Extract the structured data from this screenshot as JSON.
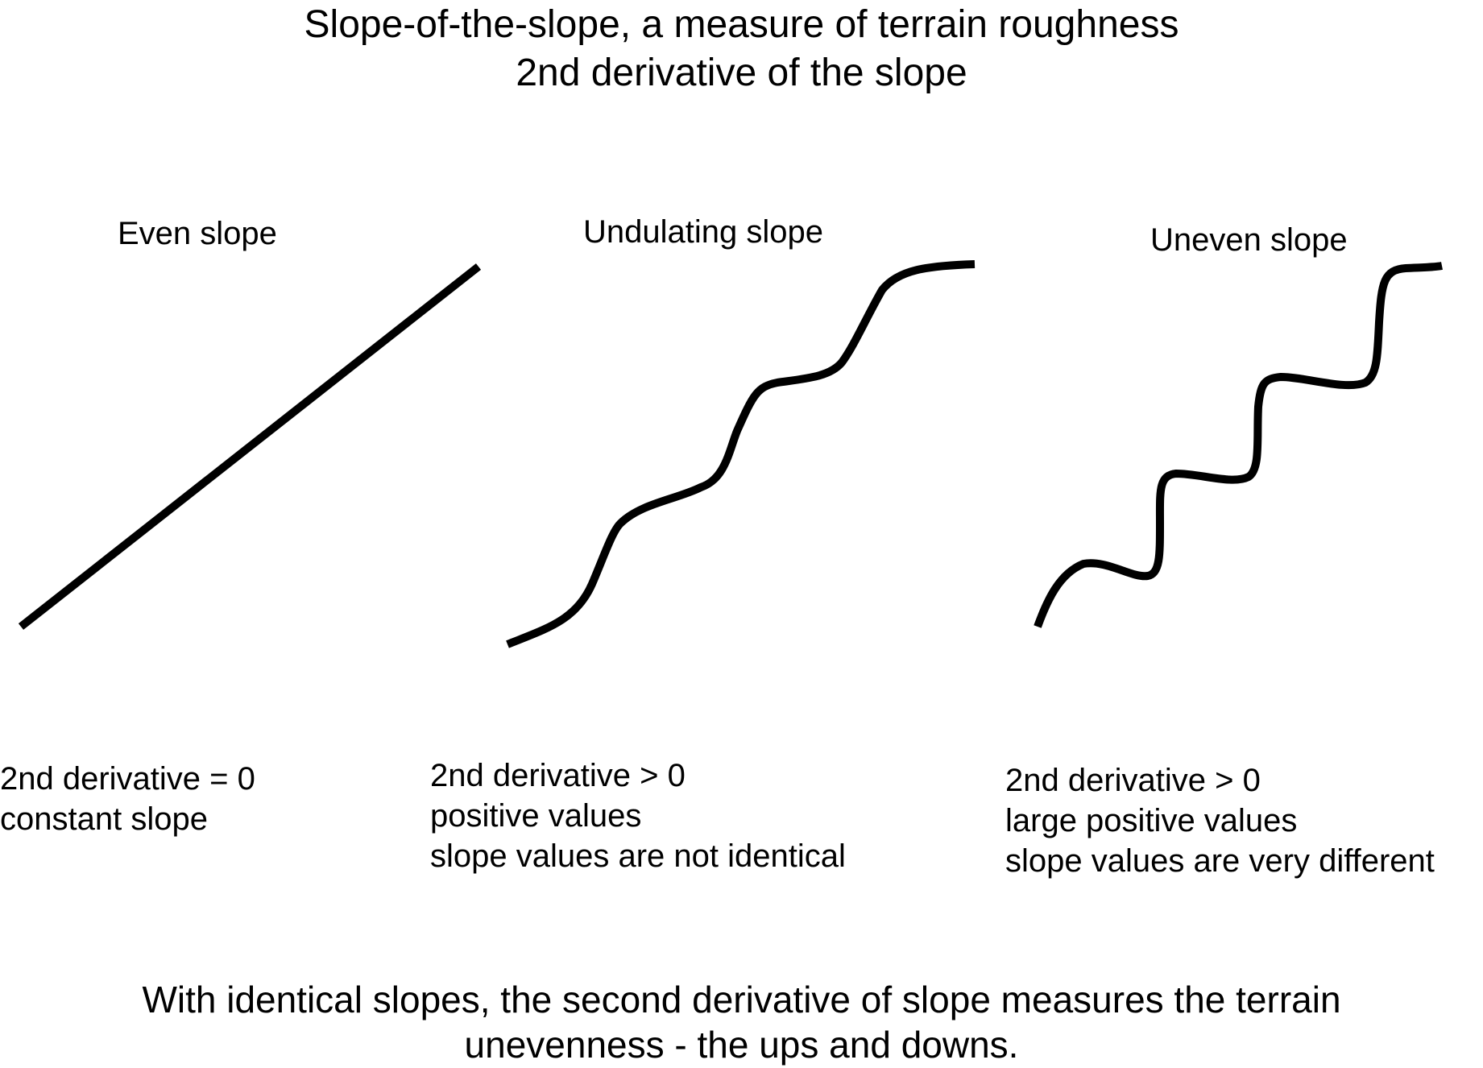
{
  "title": {
    "line1": "Slope-of-the-slope, a measure of terrain roughness",
    "line2": "2nd derivative of the slope"
  },
  "panels": [
    {
      "label": "Even slope",
      "desc": [
        "2nd derivative = 0",
        "constant slope"
      ]
    },
    {
      "label": "Undulating slope",
      "desc": [
        "2nd derivative > 0",
        "positive values",
        "slope values are not identical"
      ]
    },
    {
      "label": "Uneven slope",
      "desc": [
        "2nd derivative > 0",
        "large positive values",
        "slope values are very different"
      ]
    }
  ],
  "footer": {
    "line1": "With identical slopes, the second derivative of slope measures the terrain",
    "line2": "unevenness - the ups and downs."
  },
  "colors": {
    "line": "#000000",
    "background": "#ffffff"
  }
}
